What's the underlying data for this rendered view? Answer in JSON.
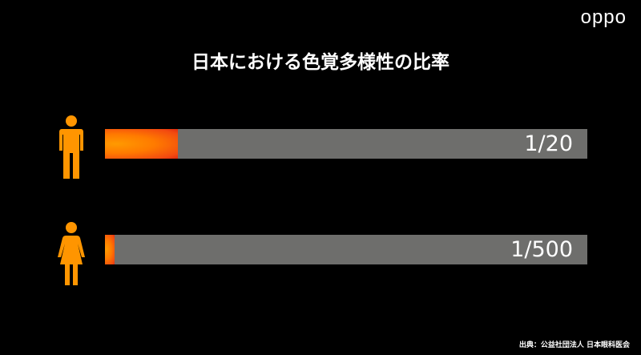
{
  "logo": "oppo",
  "chart_data": {
    "type": "bar",
    "title": "日本における色覚多様性の比率",
    "categories": [
      "male",
      "female"
    ],
    "labels": [
      "1/20",
      "1/500"
    ],
    "values": [
      0.05,
      0.002
    ],
    "colors": {
      "fill": "#ff8a00",
      "track": "#6e6e6c",
      "icon": "#ff9500"
    }
  },
  "source": "出典：公益社団法人 日本眼科医会"
}
